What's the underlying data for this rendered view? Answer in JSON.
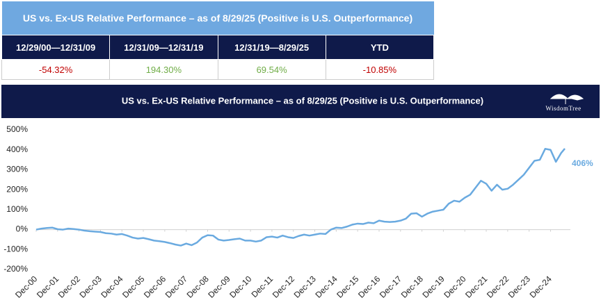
{
  "table": {
    "title": "US vs. Ex-US Relative Performance – as of 8/29/25 (Positive is U.S. Outperformance)",
    "header": [
      "12/29/00—12/31/09",
      "12/31/09—12/31/19",
      "12/31/19—8/29/25",
      "YTD"
    ],
    "rows": [
      [
        "-54.32%",
        "194.30%",
        "69.54%",
        "-10.85%"
      ]
    ],
    "cell_colors": [
      "#c00000",
      "#70ad47",
      "#70ad47",
      "#c00000"
    ]
  },
  "chart_data": {
    "type": "line",
    "title": "US vs. Ex-US Relative Performance – as of 8/29/25 (Positive is U.S. Outperformance)",
    "logo": "WisdomTree",
    "x": [
      "2000-12",
      "2001-03",
      "2001-06",
      "2001-09",
      "2001-12",
      "2002-03",
      "2002-06",
      "2002-09",
      "2002-12",
      "2003-03",
      "2003-06",
      "2003-09",
      "2003-12",
      "2004-03",
      "2004-06",
      "2004-09",
      "2004-12",
      "2005-03",
      "2005-06",
      "2005-09",
      "2005-12",
      "2006-03",
      "2006-06",
      "2006-09",
      "2006-12",
      "2007-03",
      "2007-06",
      "2007-09",
      "2007-12",
      "2008-03",
      "2008-06",
      "2008-09",
      "2008-12",
      "2009-03",
      "2009-06",
      "2009-09",
      "2009-12",
      "2010-03",
      "2010-06",
      "2010-09",
      "2010-12",
      "2011-03",
      "2011-06",
      "2011-09",
      "2011-12",
      "2012-03",
      "2012-06",
      "2012-09",
      "2012-12",
      "2013-03",
      "2013-06",
      "2013-09",
      "2013-12",
      "2014-03",
      "2014-06",
      "2014-09",
      "2014-12",
      "2015-03",
      "2015-06",
      "2015-09",
      "2015-12",
      "2016-03",
      "2016-06",
      "2016-09",
      "2016-12",
      "2017-03",
      "2017-06",
      "2017-09",
      "2017-12",
      "2018-03",
      "2018-06",
      "2018-09",
      "2018-12",
      "2019-03",
      "2019-06",
      "2019-09",
      "2019-12",
      "2020-03",
      "2020-06",
      "2020-09",
      "2020-12",
      "2021-03",
      "2021-06",
      "2021-09",
      "2021-12",
      "2022-03",
      "2022-06",
      "2022-09",
      "2022-12",
      "2023-03",
      "2023-06",
      "2023-09",
      "2023-12",
      "2024-03",
      "2024-06",
      "2024-09",
      "2024-12",
      "2025-03",
      "2025-06",
      "2025-08"
    ],
    "series": [
      {
        "name": "US vs. Ex-US",
        "color": "#6aaae0",
        "values": [
          0,
          5,
          8,
          10,
          2,
          0,
          5,
          3,
          0,
          -5,
          -8,
          -10,
          -12,
          -18,
          -20,
          -25,
          -22,
          -30,
          -40,
          -45,
          -42,
          -48,
          -55,
          -58,
          -62,
          -68,
          -75,
          -80,
          -70,
          -78,
          -65,
          -40,
          -28,
          -30,
          -50,
          -55,
          -52,
          -48,
          -45,
          -55,
          -55,
          -60,
          -55,
          -38,
          -35,
          -40,
          -30,
          -38,
          -42,
          -32,
          -25,
          -30,
          -25,
          -20,
          -22,
          0,
          10,
          8,
          15,
          25,
          30,
          28,
          35,
          32,
          45,
          40,
          38,
          40,
          45,
          55,
          80,
          82,
          65,
          80,
          90,
          95,
          100,
          130,
          145,
          140,
          160,
          175,
          210,
          245,
          230,
          195,
          225,
          200,
          205,
          225,
          250,
          275,
          310,
          345,
          350,
          405,
          400,
          340,
          385,
          406
        ],
        "value_labels": [
          null,
          null,
          null,
          null,
          null,
          null,
          null,
          null,
          null,
          null,
          null,
          null,
          null,
          null,
          null,
          null,
          null,
          null,
          null,
          null,
          null,
          null,
          null,
          null,
          null,
          null,
          null,
          null,
          null,
          null,
          null,
          null,
          null,
          null,
          null,
          null,
          null,
          null,
          null,
          null,
          null,
          null,
          null,
          null,
          null,
          null,
          null,
          null,
          null,
          null,
          null,
          null,
          null,
          null,
          null,
          null,
          null,
          null,
          null,
          null,
          null,
          null,
          null,
          null,
          null,
          null,
          null,
          null,
          null,
          null,
          null,
          null,
          null,
          null,
          null,
          null,
          null,
          null,
          null,
          null,
          null,
          null,
          null,
          null,
          null,
          null,
          null,
          null,
          null,
          null,
          null,
          null,
          null,
          null,
          null,
          null,
          null,
          null,
          null,
          "406%"
        ]
      }
    ],
    "xlim": [
      "2000-12",
      "2025-08"
    ],
    "xticks": [
      {
        "value": "2000-12",
        "label": "Dec-00"
      },
      {
        "value": "2001-12",
        "label": "Dec-01"
      },
      {
        "value": "2002-12",
        "label": "Dec-02"
      },
      {
        "value": "2003-12",
        "label": "Dec-03"
      },
      {
        "value": "2004-12",
        "label": "Dec-04"
      },
      {
        "value": "2005-12",
        "label": "Dec-05"
      },
      {
        "value": "2006-12",
        "label": "Dec-06"
      },
      {
        "value": "2007-12",
        "label": "Dec-07"
      },
      {
        "value": "2008-12",
        "label": "Dec-08"
      },
      {
        "value": "2009-12",
        "label": "Dec-09"
      },
      {
        "value": "2010-12",
        "label": "Dec-10"
      },
      {
        "value": "2011-12",
        "label": "Dec-11"
      },
      {
        "value": "2012-12",
        "label": "Dec-12"
      },
      {
        "value": "2013-12",
        "label": "Dec-13"
      },
      {
        "value": "2014-12",
        "label": "Dec-14"
      },
      {
        "value": "2015-12",
        "label": "Dec-15"
      },
      {
        "value": "2016-12",
        "label": "Dec-16"
      },
      {
        "value": "2017-12",
        "label": "Dec-17"
      },
      {
        "value": "2018-12",
        "label": "Dec-18"
      },
      {
        "value": "2019-12",
        "label": "Dec-19"
      },
      {
        "value": "2020-12",
        "label": "Dec-20"
      },
      {
        "value": "2021-12",
        "label": "Dec-21"
      },
      {
        "value": "2022-12",
        "label": "Dec-22"
      },
      {
        "value": "2023-12",
        "label": "Dec-23"
      },
      {
        "value": "2024-12",
        "label": "Dec-24"
      }
    ],
    "ylim": [
      -200,
      500
    ],
    "yticks": [
      {
        "value": 500,
        "label": "500%"
      },
      {
        "value": 400,
        "label": "400%"
      },
      {
        "value": 300,
        "label": "300%"
      },
      {
        "value": 200,
        "label": "200%"
      },
      {
        "value": 100,
        "label": "100%"
      },
      {
        "value": 0,
        "label": "0%"
      },
      {
        "value": -100,
        "label": "-100%"
      },
      {
        "value": -200,
        "label": "-200%"
      }
    ],
    "grid": false
  }
}
